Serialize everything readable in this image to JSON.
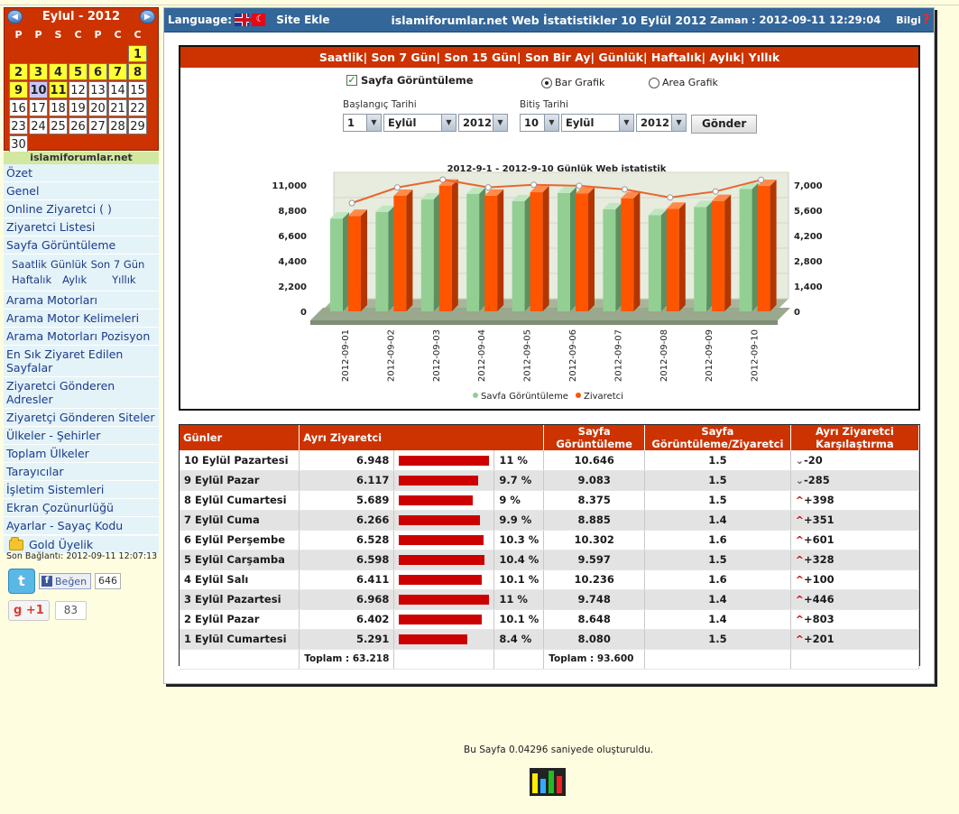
{
  "calendar": {
    "title": "Eylul - 2012",
    "day_names": [
      "P",
      "P",
      "S",
      "C",
      "P",
      "C",
      "C"
    ],
    "leading_blanks": 6,
    "days": [
      "1",
      "2",
      "3",
      "4",
      "5",
      "6",
      "7",
      "8",
      "9",
      "10",
      "11",
      "12",
      "13",
      "14",
      "15",
      "16",
      "17",
      "18",
      "19",
      "20",
      "21",
      "22",
      "23",
      "24",
      "25",
      "26",
      "27",
      "28",
      "29",
      "30"
    ],
    "highlighted_days": [
      "1",
      "2",
      "3",
      "4",
      "5",
      "6",
      "7",
      "8",
      "9",
      "11"
    ],
    "today": "10"
  },
  "sidebar": {
    "site_name": "islamiforumlar.net",
    "items": [
      "Özet",
      "Genel",
      "Online Ziyaretci ( )",
      "Ziyaretci Listesi",
      "Sayfa Görüntüleme"
    ],
    "sub_links": [
      "Saatlik",
      "Günlük",
      "Son 7 Gün",
      "Haftalık",
      "Aylık",
      "Yıllık"
    ],
    "items2": [
      "Arama Motorları",
      "Arama Motor Kelimeleri",
      "Arama Motorları Pozisyon",
      "En Sık Ziyaret Edilen Sayfalar",
      "Ziyaretci Gönderen Adresler",
      "Ziyaretçi Gönderen Siteler",
      "Ülkeler - Şehirler",
      "Toplam Ülkeler",
      "Tarayıcılar",
      "İşletim Sistemleri",
      "Ekran Çozünurlüğü",
      "Ayarlar - Sayaç Kodu"
    ],
    "gold_label": "Gold Üyelik",
    "last_connection": "Son Bağlantı: 2012-09-11 12:07:13",
    "twitter_glyph": "t",
    "fb_label": "Beğen",
    "fb_count": "646",
    "gplus_label": "+1",
    "gplus_count": "83"
  },
  "topbar": {
    "language_label": "Language:",
    "site_ekle": "Site Ekle",
    "title": "islamiforumlar.net Web İstatistikler 10 Eylül 2012",
    "time_label": "Zaman :",
    "time_value": "2012-09-11 12:29:04",
    "info_label": "Bilgi",
    "info_icon": "?"
  },
  "tabs": [
    "Saatlik",
    "Son 7 Gün",
    "Son 15 Gün",
    "Son Bir Ay",
    "Günlük",
    "Haftalık",
    "Aylık",
    "Yıllık"
  ],
  "form": {
    "checkbox_label": "Sayfa Görüntüleme",
    "radio_bar": "Bar Grafik",
    "radio_area": "Area Grafik",
    "start_label": "Başlangıç Tarihi",
    "end_label": "Bitiş Tarihi",
    "start_day": "1",
    "start_month": "Eylül",
    "start_year": "2012",
    "end_day": "10",
    "end_month": "Eylül",
    "end_year": "2012",
    "submit": "Gönder"
  },
  "chart_data": {
    "type": "bar",
    "title": "2012-9-1 - 2012-9-10 Günlük Web istatistik",
    "categories": [
      "2012-09-01",
      "2012-09-02",
      "2012-09-03",
      "2012-09-04",
      "2012-09-05",
      "2012-09-06",
      "2012-09-07",
      "2012-09-08",
      "2012-09-09",
      "2012-09-10"
    ],
    "series": [
      {
        "name": "Sayfa Görüntüleme",
        "type": "bar",
        "axis": "left",
        "color": "#8fcf8f",
        "values": [
          8080,
          8648,
          9748,
          10236,
          9597,
          10302,
          8885,
          8375,
          9083,
          10646
        ]
      },
      {
        "name": "Ziyaretci",
        "type": "bar+line",
        "axis": "right",
        "color": "#ff5500",
        "line_color": "#e8662e",
        "values": [
          5291,
          6402,
          6968,
          6411,
          6598,
          6528,
          6266,
          5689,
          6117,
          6948
        ]
      }
    ],
    "ylim_left": [
      0,
      11000
    ],
    "ylim_right": [
      0,
      7000
    ],
    "yticks_left": [
      "11,000",
      "8,800",
      "6,600",
      "4,400",
      "2,200",
      "0"
    ],
    "yticks_right": [
      "7,000",
      "5,600",
      "4,200",
      "2,800",
      "1,400",
      "0"
    ],
    "legend_position": "bottom",
    "legend": [
      "Sayfa Görüntüleme",
      "Ziyaretci"
    ]
  },
  "table": {
    "headers": [
      "Günler",
      "Ayrı Ziyaretci",
      "Sayfa Görüntüleme",
      "Sayfa Görüntüleme/Ziyaretci",
      "Ayrı Ziyaretci Karşılaştırma"
    ],
    "rows": [
      {
        "day": "10 Eylül Pazartesi",
        "visitors": "6.948",
        "share": "11 %",
        "share_value": 11,
        "views": "10.646",
        "ratio": "1.5",
        "trend": "down",
        "diff": "-20"
      },
      {
        "day": "9 Eylül Pazar",
        "visitors": "6.117",
        "share": "9.7 %",
        "share_value": 9.7,
        "views": "9.083",
        "ratio": "1.5",
        "trend": "down",
        "diff": "-285"
      },
      {
        "day": "8 Eylül Cumartesi",
        "visitors": "5.689",
        "share": "9 %",
        "share_value": 9,
        "views": "8.375",
        "ratio": "1.5",
        "trend": "up",
        "diff": "+398"
      },
      {
        "day": "7 Eylül Cuma",
        "visitors": "6.266",
        "share": "9.9 %",
        "share_value": 9.9,
        "views": "8.885",
        "ratio": "1.4",
        "trend": "up",
        "diff": "+351"
      },
      {
        "day": "6 Eylül Perşembe",
        "visitors": "6.528",
        "share": "10.3 %",
        "share_value": 10.3,
        "views": "10.302",
        "ratio": "1.6",
        "trend": "up",
        "diff": "+601"
      },
      {
        "day": "5 Eylül Carşamba",
        "visitors": "6.598",
        "share": "10.4 %",
        "share_value": 10.4,
        "views": "9.597",
        "ratio": "1.5",
        "trend": "up",
        "diff": "+328"
      },
      {
        "day": "4 Eylül Salı",
        "visitors": "6.411",
        "share": "10.1 %",
        "share_value": 10.1,
        "views": "10.236",
        "ratio": "1.6",
        "trend": "up",
        "diff": "+100"
      },
      {
        "day": "3 Eylül Pazartesi",
        "visitors": "6.968",
        "share": "11 %",
        "share_value": 11,
        "views": "9.748",
        "ratio": "1.4",
        "trend": "up",
        "diff": "+446"
      },
      {
        "day": "2 Eylül Pazar",
        "visitors": "6.402",
        "share": "10.1 %",
        "share_value": 10.1,
        "views": "8.648",
        "ratio": "1.4",
        "trend": "up",
        "diff": "+803"
      },
      {
        "day": "1 Eylül Cumartesi",
        "visitors": "5.291",
        "share": "8.4 %",
        "share_value": 8.4,
        "views": "8.080",
        "ratio": "1.5",
        "trend": "up",
        "diff": "+201"
      }
    ],
    "total_visitors": "Toplam : 63.218",
    "total_views": "Toplam : 93.600"
  },
  "footer": {
    "text": "Bu Sayfa 0.04296 saniyede oluşturuldu."
  },
  "colors": {
    "accent_red": "#cc3300",
    "topbar_blue": "#336699",
    "bar_green": "#8fcf8f",
    "bar_orange": "#ff5500",
    "share_bar": "#cc0000"
  }
}
